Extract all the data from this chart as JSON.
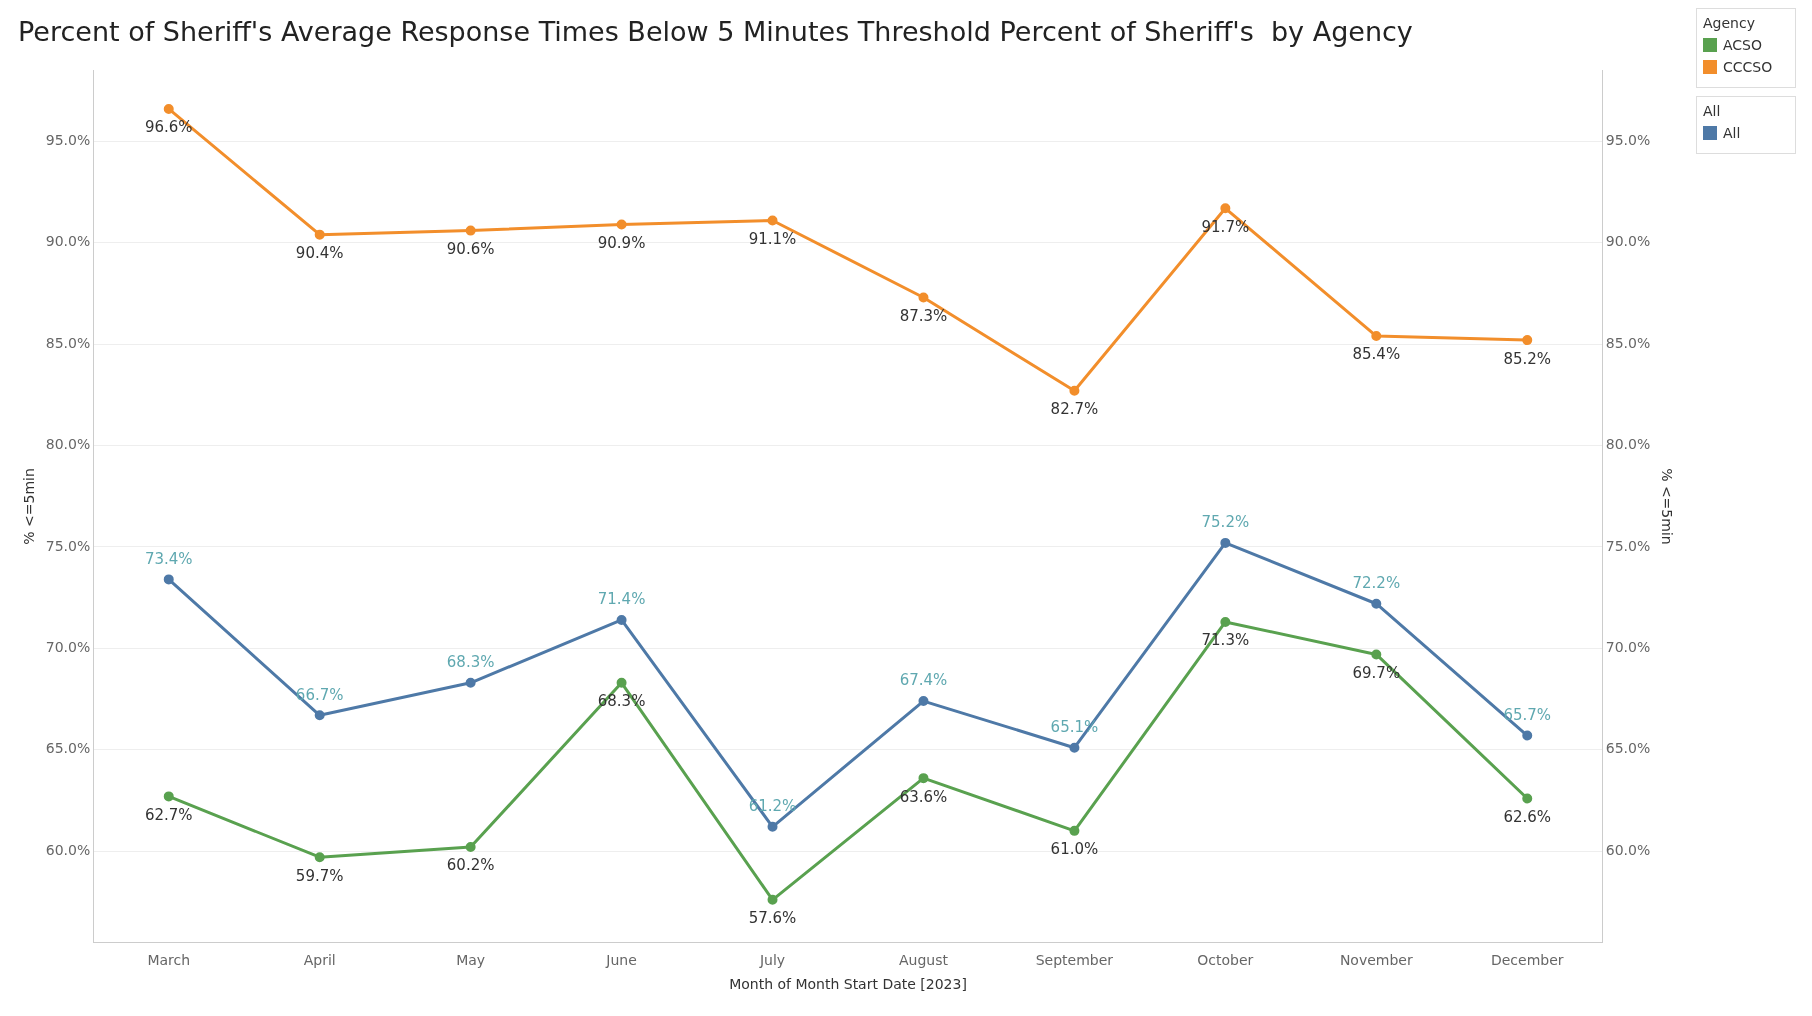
{
  "chart_data": {
    "type": "line",
    "title": "Percent of Sheriff's Average Response Times Below 5 Minutes Threshold Percent of Sheriff's  by Agency",
    "xlabel": "Month of Month Start Date [2023]",
    "ylabel": "% <=5min",
    "y2label": "% <=5min",
    "legend_title": "Agency",
    "annotations": [
      "All"
    ],
    "categories": [
      "March",
      "April",
      "May",
      "June",
      "July",
      "August",
      "September",
      "October",
      "November",
      "December"
    ],
    "series": [
      {
        "name": "ACSO",
        "color": "#59a14f",
        "values": [
          62.7,
          59.7,
          60.2,
          68.3,
          57.6,
          63.6,
          61.0,
          71.3,
          69.7,
          62.6
        ],
        "value_labels": [
          "62.7%",
          "59.7%",
          "60.2%",
          "68.3%",
          "57.6%",
          "63.6%",
          "61.0%",
          "71.3%",
          "69.7%",
          "62.6%"
        ]
      },
      {
        "name": "CCCSO",
        "color": "#f28e2b",
        "values": [
          96.6,
          90.4,
          90.6,
          90.9,
          91.1,
          87.3,
          82.7,
          91.7,
          85.4,
          85.2
        ],
        "value_labels": [
          "96.6%",
          "90.4%",
          "90.6%",
          "90.9%",
          "91.1%",
          "87.3%",
          "82.7%",
          "91.7%",
          "85.4%",
          "85.2%"
        ]
      },
      {
        "name": "All",
        "color": "#4e79a7",
        "values": [
          73.4,
          66.7,
          68.3,
          71.4,
          61.2,
          67.4,
          65.1,
          75.2,
          72.2,
          65.7
        ],
        "value_labels": [
          "73.4%",
          "66.7%",
          "68.3%",
          "71.4%",
          "61.2%",
          "67.4%",
          "65.1%",
          "75.2%",
          "72.2%",
          "65.7%"
        ]
      }
    ],
    "ylim": [
      55.5,
      98.5
    ],
    "yticks": [
      {
        "value": 60,
        "label": "60.0%"
      },
      {
        "value": 65,
        "label": "65.0%"
      },
      {
        "value": 70,
        "label": "70.0%"
      },
      {
        "value": 75,
        "label": "75.0%"
      },
      {
        "value": 80,
        "label": "80.0%"
      },
      {
        "value": 85,
        "label": "85.0%"
      },
      {
        "value": 90,
        "label": "90.0%"
      },
      {
        "value": 95,
        "label": "95.0%"
      }
    ],
    "y2lim": [
      55.5,
      98.5
    ],
    "y2ticks": [
      {
        "value": 60,
        "label": "60.0%"
      },
      {
        "value": 65,
        "label": "65.0%"
      },
      {
        "value": 70,
        "label": "70.0%"
      },
      {
        "value": 75,
        "label": "75.0%"
      },
      {
        "value": 80,
        "label": "80.0%"
      },
      {
        "value": 85,
        "label": "85.0%"
      },
      {
        "value": 90,
        "label": "90.0%"
      },
      {
        "value": 95,
        "label": "95.0%"
      }
    ],
    "grid": "y",
    "legend": "top right",
    "marker": "circle",
    "line_style": "solid"
  }
}
